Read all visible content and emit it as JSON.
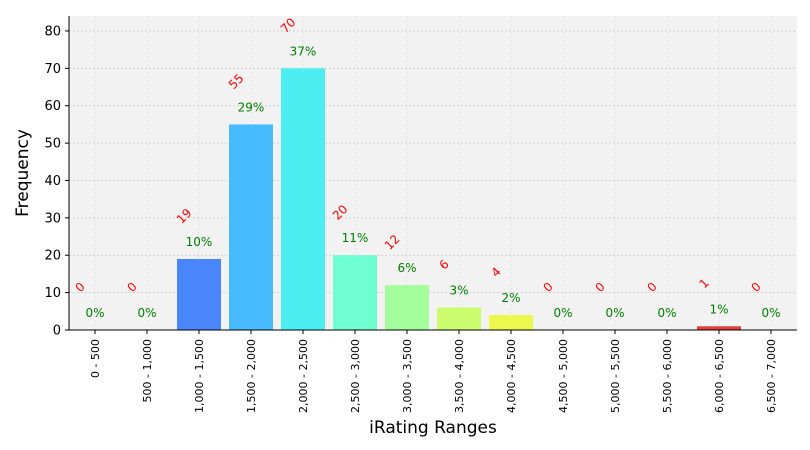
{
  "chart_data": {
    "type": "bar",
    "xlabel": "iRating Ranges",
    "ylabel": "Frequency",
    "ylim": [
      0,
      84
    ],
    "yticks": [
      0,
      10,
      20,
      30,
      40,
      50,
      60,
      70,
      80
    ],
    "grid": true,
    "categories": [
      "0 - 500",
      "500 - 1,000",
      "1,000 - 1,500",
      "1,500 - 2,000",
      "2,000 - 2,500",
      "2,500 - 3,000",
      "3,000 - 3,500",
      "3,500 - 4,000",
      "4,000 - 4,500",
      "4,500 - 5,000",
      "5,000 - 5,500",
      "5,500 - 6,000",
      "6,000 - 6,500",
      "6,500 - 7,000"
    ],
    "values": [
      0,
      0,
      19,
      55,
      70,
      20,
      12,
      6,
      4,
      0,
      0,
      0,
      1,
      0
    ],
    "percent_labels": [
      "0%",
      "0%",
      "10%",
      "29%",
      "37%",
      "11%",
      "6%",
      "3%",
      "2%",
      "0%",
      "0%",
      "0%",
      "1%",
      "0%"
    ],
    "bar_colors": [
      "#3355ff",
      "#3a7bff",
      "#4a86fb",
      "#48bbfc",
      "#4ceef1",
      "#6efecf",
      "#a2fe9b",
      "#cbfc6e",
      "#ecf84c",
      "#ffbf3c",
      "#ff8b2a",
      "#ff5a1e",
      "#e0403a",
      "#b20000"
    ],
    "count_label_color": "#ff0000",
    "percent_label_color": "#008000",
    "plot_background": "#f2f2f2"
  }
}
